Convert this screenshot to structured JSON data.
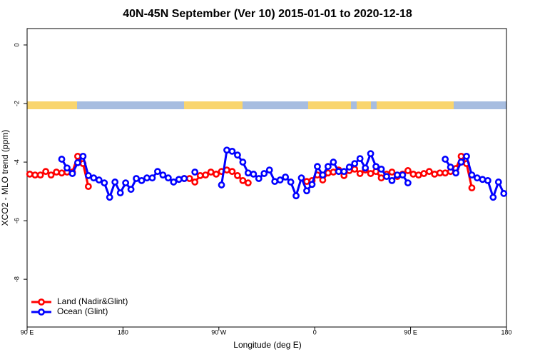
{
  "chart_data": {
    "type": "line",
    "title": "40N-45N September (Ver 10)   2015-01-01 to 2020-12-18",
    "xlabel": "Longitude (deg E)",
    "ylabel": "XCO2 - MLO trend (ppm)",
    "xlim": [
      90,
      540
    ],
    "ylim": [
      -9.63,
      0.56
    ],
    "xticks": [
      {
        "value": 90,
        "label": "90 E"
      },
      180,
      {
        "value": 270,
        "label": "90 W"
      },
      {
        "value": 360,
        "label": "0"
      },
      {
        "value": 450,
        "label": "90 E"
      },
      {
        "value": 540,
        "label": "180"
      }
    ],
    "yticks": [
      0,
      -2,
      -4,
      -6,
      -8
    ],
    "legend": "bottom-left",
    "x": [
      92.5,
      97.5,
      102.5,
      107.5,
      112.5,
      117.5,
      122.5,
      127.5,
      132.5,
      137.5,
      142.5,
      147.5,
      152.5,
      157.5,
      162.5,
      167.5,
      172.5,
      177.5,
      182.5,
      187.5,
      192.5,
      197.5,
      202.5,
      207.5,
      212.5,
      217.5,
      222.5,
      227.5,
      232.5,
      237.5,
      242.5,
      247.5,
      252.5,
      257.5,
      262.5,
      267.5,
      272.5,
      277.5,
      282.5,
      287.5,
      292.5,
      297.5,
      302.5,
      307.5,
      312.5,
      317.5,
      322.5,
      327.5,
      332.5,
      337.5,
      342.5,
      347.5,
      352.5,
      357.5,
      362.5,
      367.5,
      372.5,
      377.5,
      382.5,
      387.5,
      392.5,
      397.5,
      402.5,
      407.5,
      412.5,
      417.5,
      422.5,
      427.5,
      432.5,
      437.5,
      442.5,
      447.5,
      452.5,
      457.5,
      462.5,
      467.5,
      472.5,
      477.5,
      482.5,
      487.5,
      492.5,
      497.5,
      502.5,
      507.5,
      512.5,
      517.5,
      522.5,
      527.5,
      532.5,
      537.5
    ],
    "series": [
      {
        "name": "Land (Nadir&Glint)",
        "color": "#ff0000",
        "values": [
          -4.41,
          -4.44,
          -4.44,
          -4.32,
          -4.44,
          -4.34,
          -4.37,
          -4.34,
          -4.34,
          -3.8,
          -4.05,
          -4.83,
          null,
          null,
          null,
          null,
          null,
          null,
          null,
          null,
          null,
          null,
          null,
          null,
          null,
          null,
          null,
          null,
          null,
          -4.56,
          -4.56,
          -4.68,
          -4.46,
          -4.44,
          -4.34,
          -4.41,
          -4.32,
          -4.27,
          -4.32,
          -4.46,
          -4.63,
          -4.71,
          null,
          null,
          null,
          null,
          null,
          null,
          null,
          null,
          null,
          null,
          -4.66,
          -4.63,
          -4.44,
          -4.61,
          -4.37,
          -4.34,
          -4.27,
          -4.46,
          -4.29,
          -4.24,
          -4.39,
          -4.27,
          -4.39,
          -4.32,
          -4.54,
          -4.41,
          -4.34,
          -4.49,
          -4.41,
          -4.29,
          -4.41,
          -4.44,
          -4.39,
          -4.32,
          -4.41,
          -4.37,
          -4.37,
          -4.32,
          -4.22,
          -3.8,
          -4.05,
          -4.88,
          null,
          null,
          null,
          null,
          null,
          null
        ]
      },
      {
        "name": "Ocean (Glint)",
        "color": "#0000ff",
        "values": [
          null,
          null,
          null,
          null,
          null,
          null,
          -3.9,
          -4.2,
          -4.39,
          -4.02,
          -3.8,
          -4.46,
          -4.54,
          -4.61,
          -4.71,
          -5.2,
          -4.68,
          -5.05,
          -4.71,
          -4.93,
          -4.56,
          -4.63,
          -4.54,
          -4.54,
          -4.32,
          -4.44,
          -4.54,
          -4.68,
          -4.59,
          -4.56,
          null,
          -4.34,
          null,
          null,
          null,
          null,
          -4.78,
          -3.59,
          -3.63,
          -3.76,
          -4.0,
          -4.37,
          -4.41,
          -4.56,
          -4.39,
          -4.27,
          -4.66,
          -4.61,
          -4.51,
          -4.68,
          -5.15,
          -4.54,
          -4.98,
          -4.76,
          -4.15,
          -4.44,
          -4.15,
          -4.0,
          -4.32,
          -4.32,
          -4.17,
          -4.05,
          -3.88,
          -4.2,
          -3.71,
          -4.15,
          -4.24,
          -4.49,
          -4.63,
          -4.44,
          -4.44,
          -4.71,
          null,
          null,
          null,
          null,
          null,
          null,
          -3.9,
          -4.17,
          -4.37,
          -4.0,
          -3.8,
          -4.44,
          -4.54,
          -4.59,
          -4.63,
          -5.2,
          -4.68,
          -5.07
        ]
      }
    ]
  }
}
